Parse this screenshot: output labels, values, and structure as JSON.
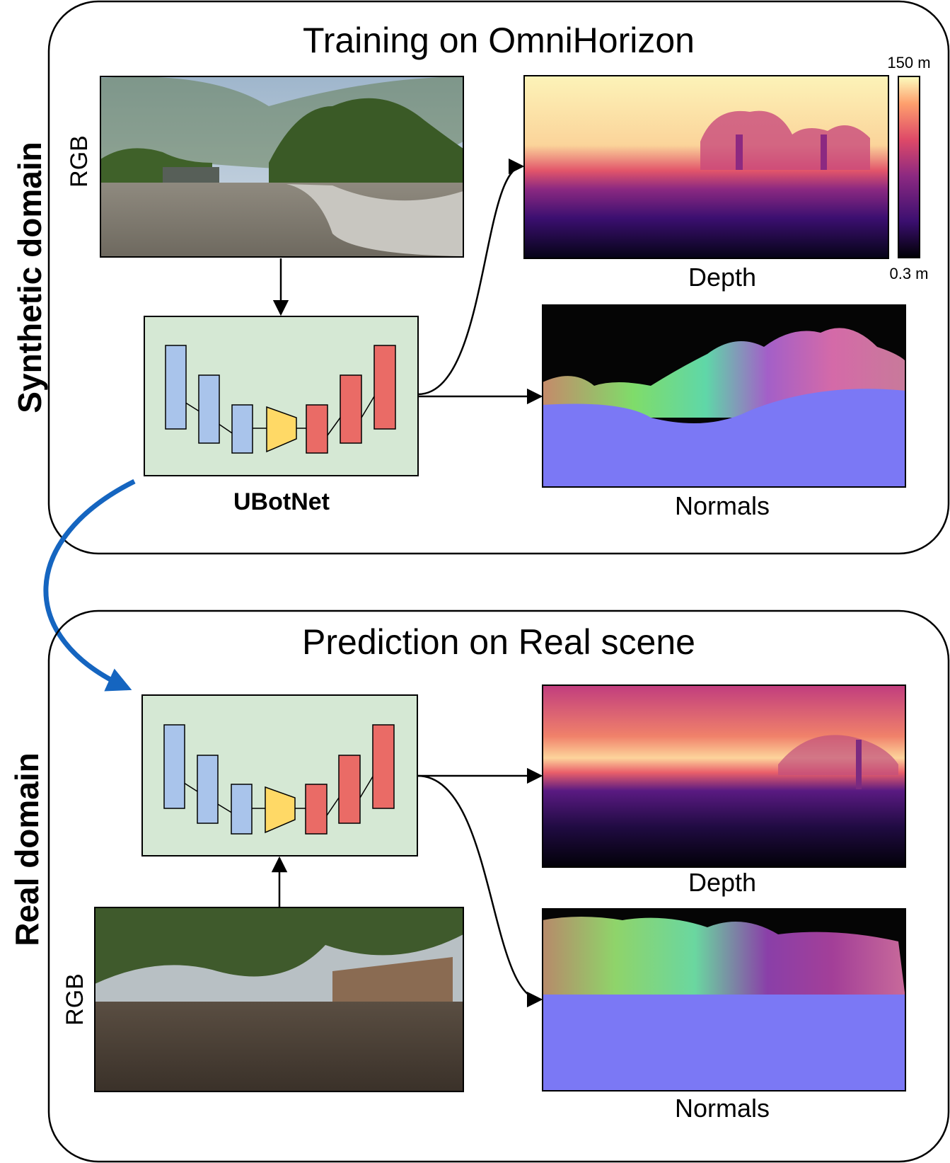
{
  "panels": {
    "synthetic": {
      "title": "Training on OmniHorizon",
      "side_label": "Synthetic domain",
      "rgb_label": "RGB",
      "network_label": "UBotNet",
      "depth_label": "Depth",
      "normals_label": "Normals",
      "colorbar": {
        "max_label": "150 m",
        "min_label": "0.3 m"
      }
    },
    "real": {
      "title": "Prediction on Real scene",
      "side_label": "Real domain",
      "rgb_label": "RGB",
      "depth_label": "Depth",
      "normals_label": "Normals"
    }
  },
  "colors": {
    "encoder": "#a9c4eb",
    "bottleneck": "#ffd966",
    "decoder": "#ea6b66",
    "network_bg": "#d5e8d4",
    "transfer_arrow": "#1565c0",
    "depth_colormap": [
      "#000004",
      "#3b0f70",
      "#8c2981",
      "#de4968",
      "#fe9f6d",
      "#fcfdbf"
    ],
    "normals_ground": "#7b78f5"
  }
}
